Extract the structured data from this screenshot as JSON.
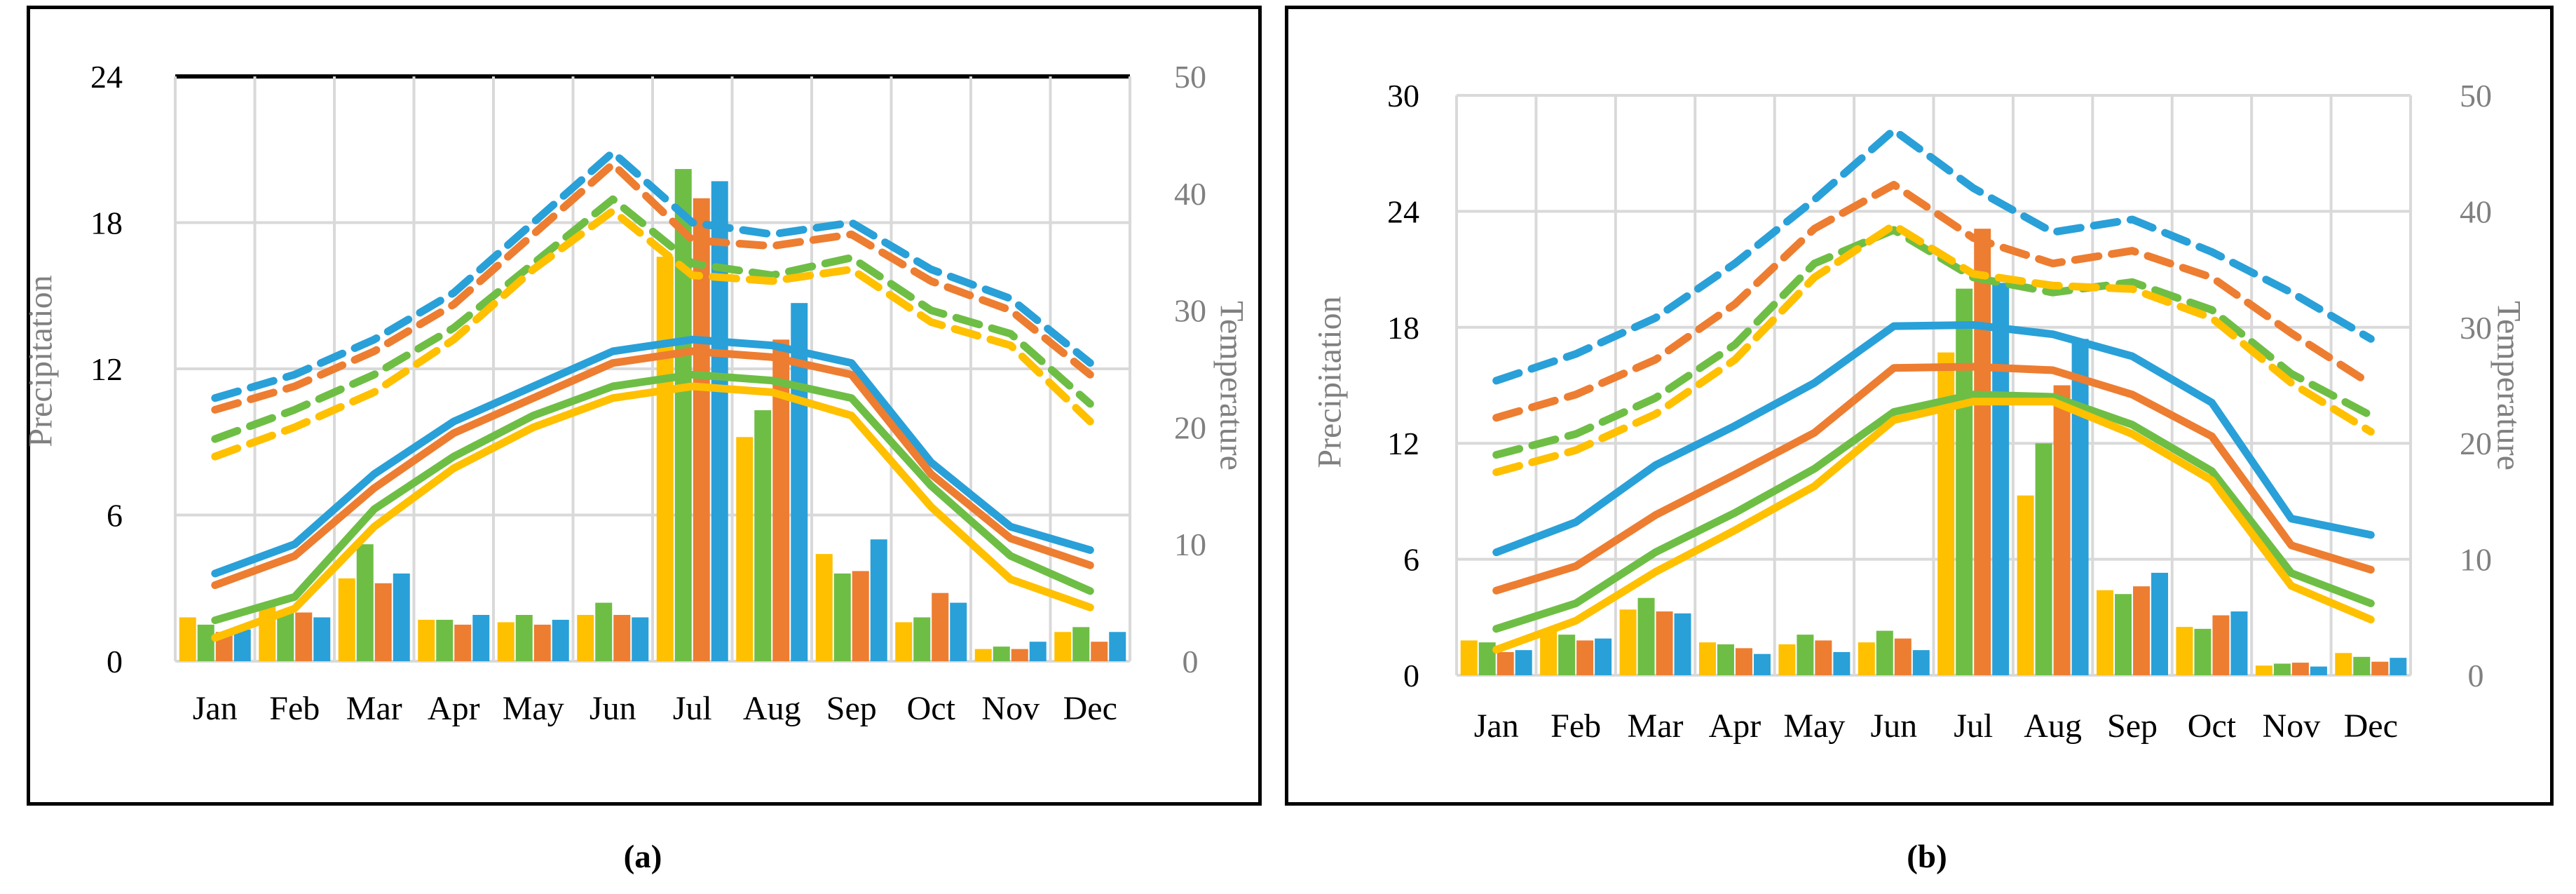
{
  "figure": {
    "background": "#ffffff",
    "border_color": "#000000",
    "grid_color": "#d9d9d9",
    "axis_text_gray": "#808080",
    "series_colors": {
      "yellow": "#FFC000",
      "green": "#6EBE45",
      "orange": "#ED7D31",
      "blue": "#29A0D8"
    },
    "captions": [
      "(a)",
      "(b)"
    ]
  },
  "chart_data": [
    {
      "id": "a",
      "type": "combo-bar-line-dual-axis",
      "caption": "(a)",
      "categories": [
        "Jan",
        "Feb",
        "Mar",
        "Apr",
        "May",
        "Jun",
        "Jul",
        "Aug",
        "Sep",
        "Oct",
        "Nov",
        "Dec"
      ],
      "y_left": {
        "label": "Precipitation",
        "min": 0,
        "max": 24,
        "ticks": [
          24,
          18,
          12,
          6,
          0
        ]
      },
      "y_right": {
        "label": "Temperature",
        "min": 0,
        "max": 50,
        "ticks": [
          50,
          40,
          30,
          20,
          10,
          0
        ]
      },
      "grid": true,
      "legend": "none",
      "top_border": "black",
      "bar_series": [
        {
          "name": "precip-yellow",
          "color": "yellow",
          "values": [
            1.8,
            2.3,
            3.4,
            1.7,
            1.6,
            1.9,
            16.6,
            9.2,
            4.4,
            1.6,
            0.5,
            1.2
          ]
        },
        {
          "name": "precip-green",
          "color": "green",
          "values": [
            1.5,
            2.0,
            4.8,
            1.7,
            1.9,
            2.4,
            20.2,
            10.3,
            3.6,
            1.8,
            0.6,
            1.4
          ]
        },
        {
          "name": "precip-orange",
          "color": "orange",
          "values": [
            1.2,
            2.0,
            3.2,
            1.5,
            1.5,
            1.9,
            19.0,
            13.2,
            3.7,
            2.8,
            0.5,
            0.8
          ]
        },
        {
          "name": "precip-blue",
          "color": "blue",
          "values": [
            1.3,
            1.8,
            3.6,
            1.9,
            1.7,
            1.8,
            19.7,
            14.7,
            5.0,
            2.4,
            0.8,
            1.2
          ]
        }
      ],
      "line_series": [
        {
          "name": "tmax-blue",
          "style": "dashed",
          "color": "blue",
          "axis": "right",
          "values": [
            22.5,
            24.5,
            27.5,
            31.5,
            37.5,
            43.5,
            37.5,
            36.5,
            37.5,
            33.5,
            31.0,
            25.5
          ]
        },
        {
          "name": "tmax-orange",
          "style": "dashed",
          "color": "orange",
          "axis": "right",
          "values": [
            21.5,
            23.5,
            26.5,
            30.5,
            36.5,
            42.5,
            36.0,
            35.5,
            36.5,
            32.5,
            30.0,
            24.5
          ]
        },
        {
          "name": "tmax-green",
          "style": "dashed",
          "color": "green",
          "axis": "right",
          "values": [
            19.0,
            21.5,
            24.5,
            28.5,
            34.0,
            39.5,
            34.0,
            33.0,
            34.5,
            30.0,
            28.0,
            22.0
          ]
        },
        {
          "name": "tmax-yellow",
          "style": "dashed",
          "color": "yellow",
          "axis": "right",
          "values": [
            17.5,
            20.0,
            23.0,
            27.5,
            33.5,
            38.5,
            33.0,
            32.5,
            33.5,
            29.0,
            27.0,
            20.5
          ]
        },
        {
          "name": "tmin-blue",
          "style": "solid",
          "color": "blue",
          "axis": "right",
          "values": [
            7.5,
            10.0,
            16.0,
            20.5,
            23.5,
            26.5,
            27.5,
            27.0,
            25.5,
            17.0,
            11.5,
            9.5
          ]
        },
        {
          "name": "tmin-orange",
          "style": "solid",
          "color": "orange",
          "axis": "right",
          "values": [
            6.5,
            9.0,
            14.8,
            19.5,
            22.5,
            25.5,
            26.5,
            26.0,
            24.5,
            16.0,
            10.5,
            8.2
          ]
        },
        {
          "name": "tmin-green",
          "style": "solid",
          "color": "green",
          "axis": "right",
          "values": [
            3.5,
            5.5,
            13.0,
            17.5,
            21.0,
            23.5,
            24.5,
            24.0,
            22.5,
            15.0,
            9.0,
            6.0
          ]
        },
        {
          "name": "tmin-yellow",
          "style": "solid",
          "color": "yellow",
          "axis": "right",
          "values": [
            2.0,
            4.5,
            11.5,
            16.5,
            20.0,
            22.5,
            23.5,
            23.0,
            21.0,
            13.2,
            7.0,
            4.6
          ]
        }
      ]
    },
    {
      "id": "b",
      "type": "combo-bar-line-dual-axis",
      "caption": "(b)",
      "categories": [
        "Jan",
        "Feb",
        "Mar",
        "Apr",
        "May",
        "Jun",
        "Jul",
        "Aug",
        "Sep",
        "Oct",
        "Nov",
        "Dec"
      ],
      "y_left": {
        "label": "Precipitation",
        "min": 0,
        "max": 30,
        "ticks": [
          30,
          24,
          18,
          12,
          6,
          0
        ]
      },
      "y_right": {
        "label": "Temperature",
        "min": 0,
        "max": 50,
        "ticks": [
          50,
          40,
          30,
          20,
          10,
          0
        ]
      },
      "grid": true,
      "legend": "none",
      "top_border": "gray",
      "bar_series": [
        {
          "name": "precip-yellow",
          "color": "yellow",
          "values": [
            1.8,
            2.3,
            3.4,
            1.7,
            1.6,
            1.7,
            16.7,
            9.3,
            4.4,
            2.5,
            0.5,
            1.15
          ]
        },
        {
          "name": "precip-green",
          "color": "green",
          "values": [
            1.7,
            2.1,
            4.0,
            1.6,
            2.1,
            2.3,
            20.0,
            12.0,
            4.2,
            2.4,
            0.6,
            0.95
          ]
        },
        {
          "name": "precip-orange",
          "color": "orange",
          "values": [
            1.2,
            1.8,
            3.3,
            1.4,
            1.8,
            1.9,
            23.1,
            15.0,
            4.6,
            3.1,
            0.65,
            0.7
          ]
        },
        {
          "name": "precip-blue",
          "color": "blue",
          "values": [
            1.3,
            1.9,
            3.2,
            1.1,
            1.2,
            1.3,
            20.3,
            17.4,
            5.3,
            3.3,
            0.45,
            0.9
          ]
        }
      ],
      "line_series": [
        {
          "name": "tmax-blue",
          "style": "dashed",
          "color": "blue",
          "axis": "right",
          "values": [
            25.4,
            27.7,
            30.8,
            35.5,
            41.0,
            47.0,
            42.0,
            38.2,
            39.3,
            36.5,
            33.0,
            29.0
          ]
        },
        {
          "name": "tmax-orange",
          "style": "dashed",
          "color": "orange",
          "axis": "right",
          "values": [
            22.2,
            24.2,
            27.2,
            32.0,
            38.5,
            42.3,
            37.7,
            35.5,
            36.6,
            34.3,
            29.5,
            25.1
          ]
        },
        {
          "name": "tmax-green",
          "style": "dashed",
          "color": "green",
          "axis": "right",
          "values": [
            19.0,
            20.8,
            23.9,
            28.5,
            35.5,
            38.4,
            34.3,
            33.0,
            33.9,
            31.5,
            26.0,
            22.4
          ]
        },
        {
          "name": "tmax-yellow",
          "style": "dashed",
          "color": "yellow",
          "axis": "right",
          "values": [
            17.5,
            19.4,
            22.5,
            27.2,
            34.3,
            38.8,
            34.6,
            33.6,
            33.3,
            30.8,
            25.2,
            21.0
          ]
        },
        {
          "name": "tmin-blue",
          "style": "solid",
          "color": "blue",
          "axis": "right",
          "values": [
            10.6,
            13.2,
            18.1,
            21.5,
            25.2,
            30.1,
            30.2,
            29.4,
            27.5,
            23.5,
            13.5,
            12.1
          ]
        },
        {
          "name": "tmin-orange",
          "style": "solid",
          "color": "orange",
          "axis": "right",
          "values": [
            7.3,
            9.4,
            13.8,
            17.3,
            20.9,
            26.5,
            26.6,
            26.3,
            24.2,
            20.6,
            11.2,
            9.1
          ]
        },
        {
          "name": "tmin-green",
          "style": "solid",
          "color": "green",
          "axis": "right",
          "values": [
            4.0,
            6.2,
            10.6,
            14.0,
            17.8,
            22.7,
            24.2,
            24.0,
            21.6,
            17.6,
            8.8,
            6.2
          ]
        },
        {
          "name": "tmin-yellow",
          "style": "solid",
          "color": "yellow",
          "axis": "right",
          "values": [
            2.2,
            4.7,
            8.9,
            12.5,
            16.3,
            22.0,
            23.6,
            23.6,
            20.8,
            16.8,
            7.7,
            4.8
          ]
        }
      ]
    }
  ]
}
